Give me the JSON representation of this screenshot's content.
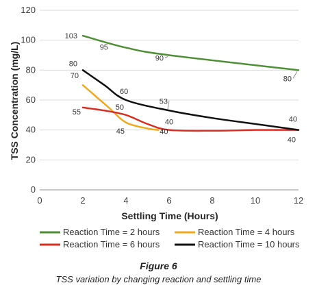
{
  "chart_data": {
    "type": "line",
    "xlabel": "Settling Time (Hours)",
    "ylabel": "TSS Concentration (mg/L)",
    "xlim": [
      0,
      12
    ],
    "ylim": [
      0,
      120
    ],
    "xticks": [
      0,
      2,
      4,
      6,
      8,
      10,
      12
    ],
    "yticks": [
      0,
      20,
      40,
      60,
      80,
      100,
      120
    ],
    "grid": "horizontal",
    "legend_position": "bottom",
    "series": [
      {
        "name": "Reaction Time = 2 hours",
        "color": "#4e8f35",
        "points": [
          [
            2,
            103
          ],
          [
            4,
            95
          ],
          [
            6,
            90
          ],
          [
            12,
            80
          ]
        ],
        "labels": [
          {
            "x": 2,
            "y": 103,
            "text": "103"
          },
          {
            "x": 3.3,
            "y": 96.5,
            "text": "95"
          },
          {
            "x": 6,
            "y": 90,
            "text": "90"
          },
          {
            "x": 12,
            "y": 80,
            "text": "80"
          }
        ]
      },
      {
        "name": "Reaction Time = 4 hours",
        "color": "#f0a81c",
        "points": [
          [
            2,
            70
          ],
          [
            3.2,
            55
          ],
          [
            4,
            45
          ],
          [
            5,
            41
          ],
          [
            5.5,
            40
          ]
        ],
        "labels": [
          {
            "x": 2,
            "y": 70,
            "text": "70"
          },
          {
            "x": 4,
            "y": 45,
            "text": "45"
          },
          {
            "x": 5.5,
            "y": 40,
            "text": "40"
          }
        ]
      },
      {
        "name": "Reaction Time = 6 hours",
        "color": "#d62f22",
        "points": [
          [
            2,
            55
          ],
          [
            3,
            53
          ],
          [
            4,
            50
          ],
          [
            5,
            44
          ],
          [
            6,
            40
          ],
          [
            8,
            39.5
          ],
          [
            10,
            40
          ],
          [
            12,
            40
          ]
        ],
        "labels": [
          {
            "x": 2,
            "y": 55,
            "text": "55"
          },
          {
            "x": 4,
            "y": 50,
            "text": "50"
          },
          {
            "x": 6,
            "y": 40,
            "text": "40"
          },
          {
            "x": 12,
            "y": 40,
            "text": "40"
          }
        ]
      },
      {
        "name": "Reaction Time = 10 hours",
        "color": "#111111",
        "points": [
          [
            2,
            80
          ],
          [
            3,
            70
          ],
          [
            4,
            60
          ],
          [
            6,
            53
          ],
          [
            8,
            48
          ],
          [
            10,
            44
          ],
          [
            12,
            40
          ]
        ],
        "labels": [
          {
            "x": 2,
            "y": 80,
            "text": "80"
          },
          {
            "x": 4,
            "y": 60,
            "text": "60"
          },
          {
            "x": 6,
            "y": 53,
            "text": "53"
          },
          {
            "x": 12,
            "y": 40,
            "text": "40"
          }
        ]
      }
    ]
  },
  "caption": {
    "title": "Figure 6",
    "text": "TSS variation by changing reaction and settling time"
  }
}
